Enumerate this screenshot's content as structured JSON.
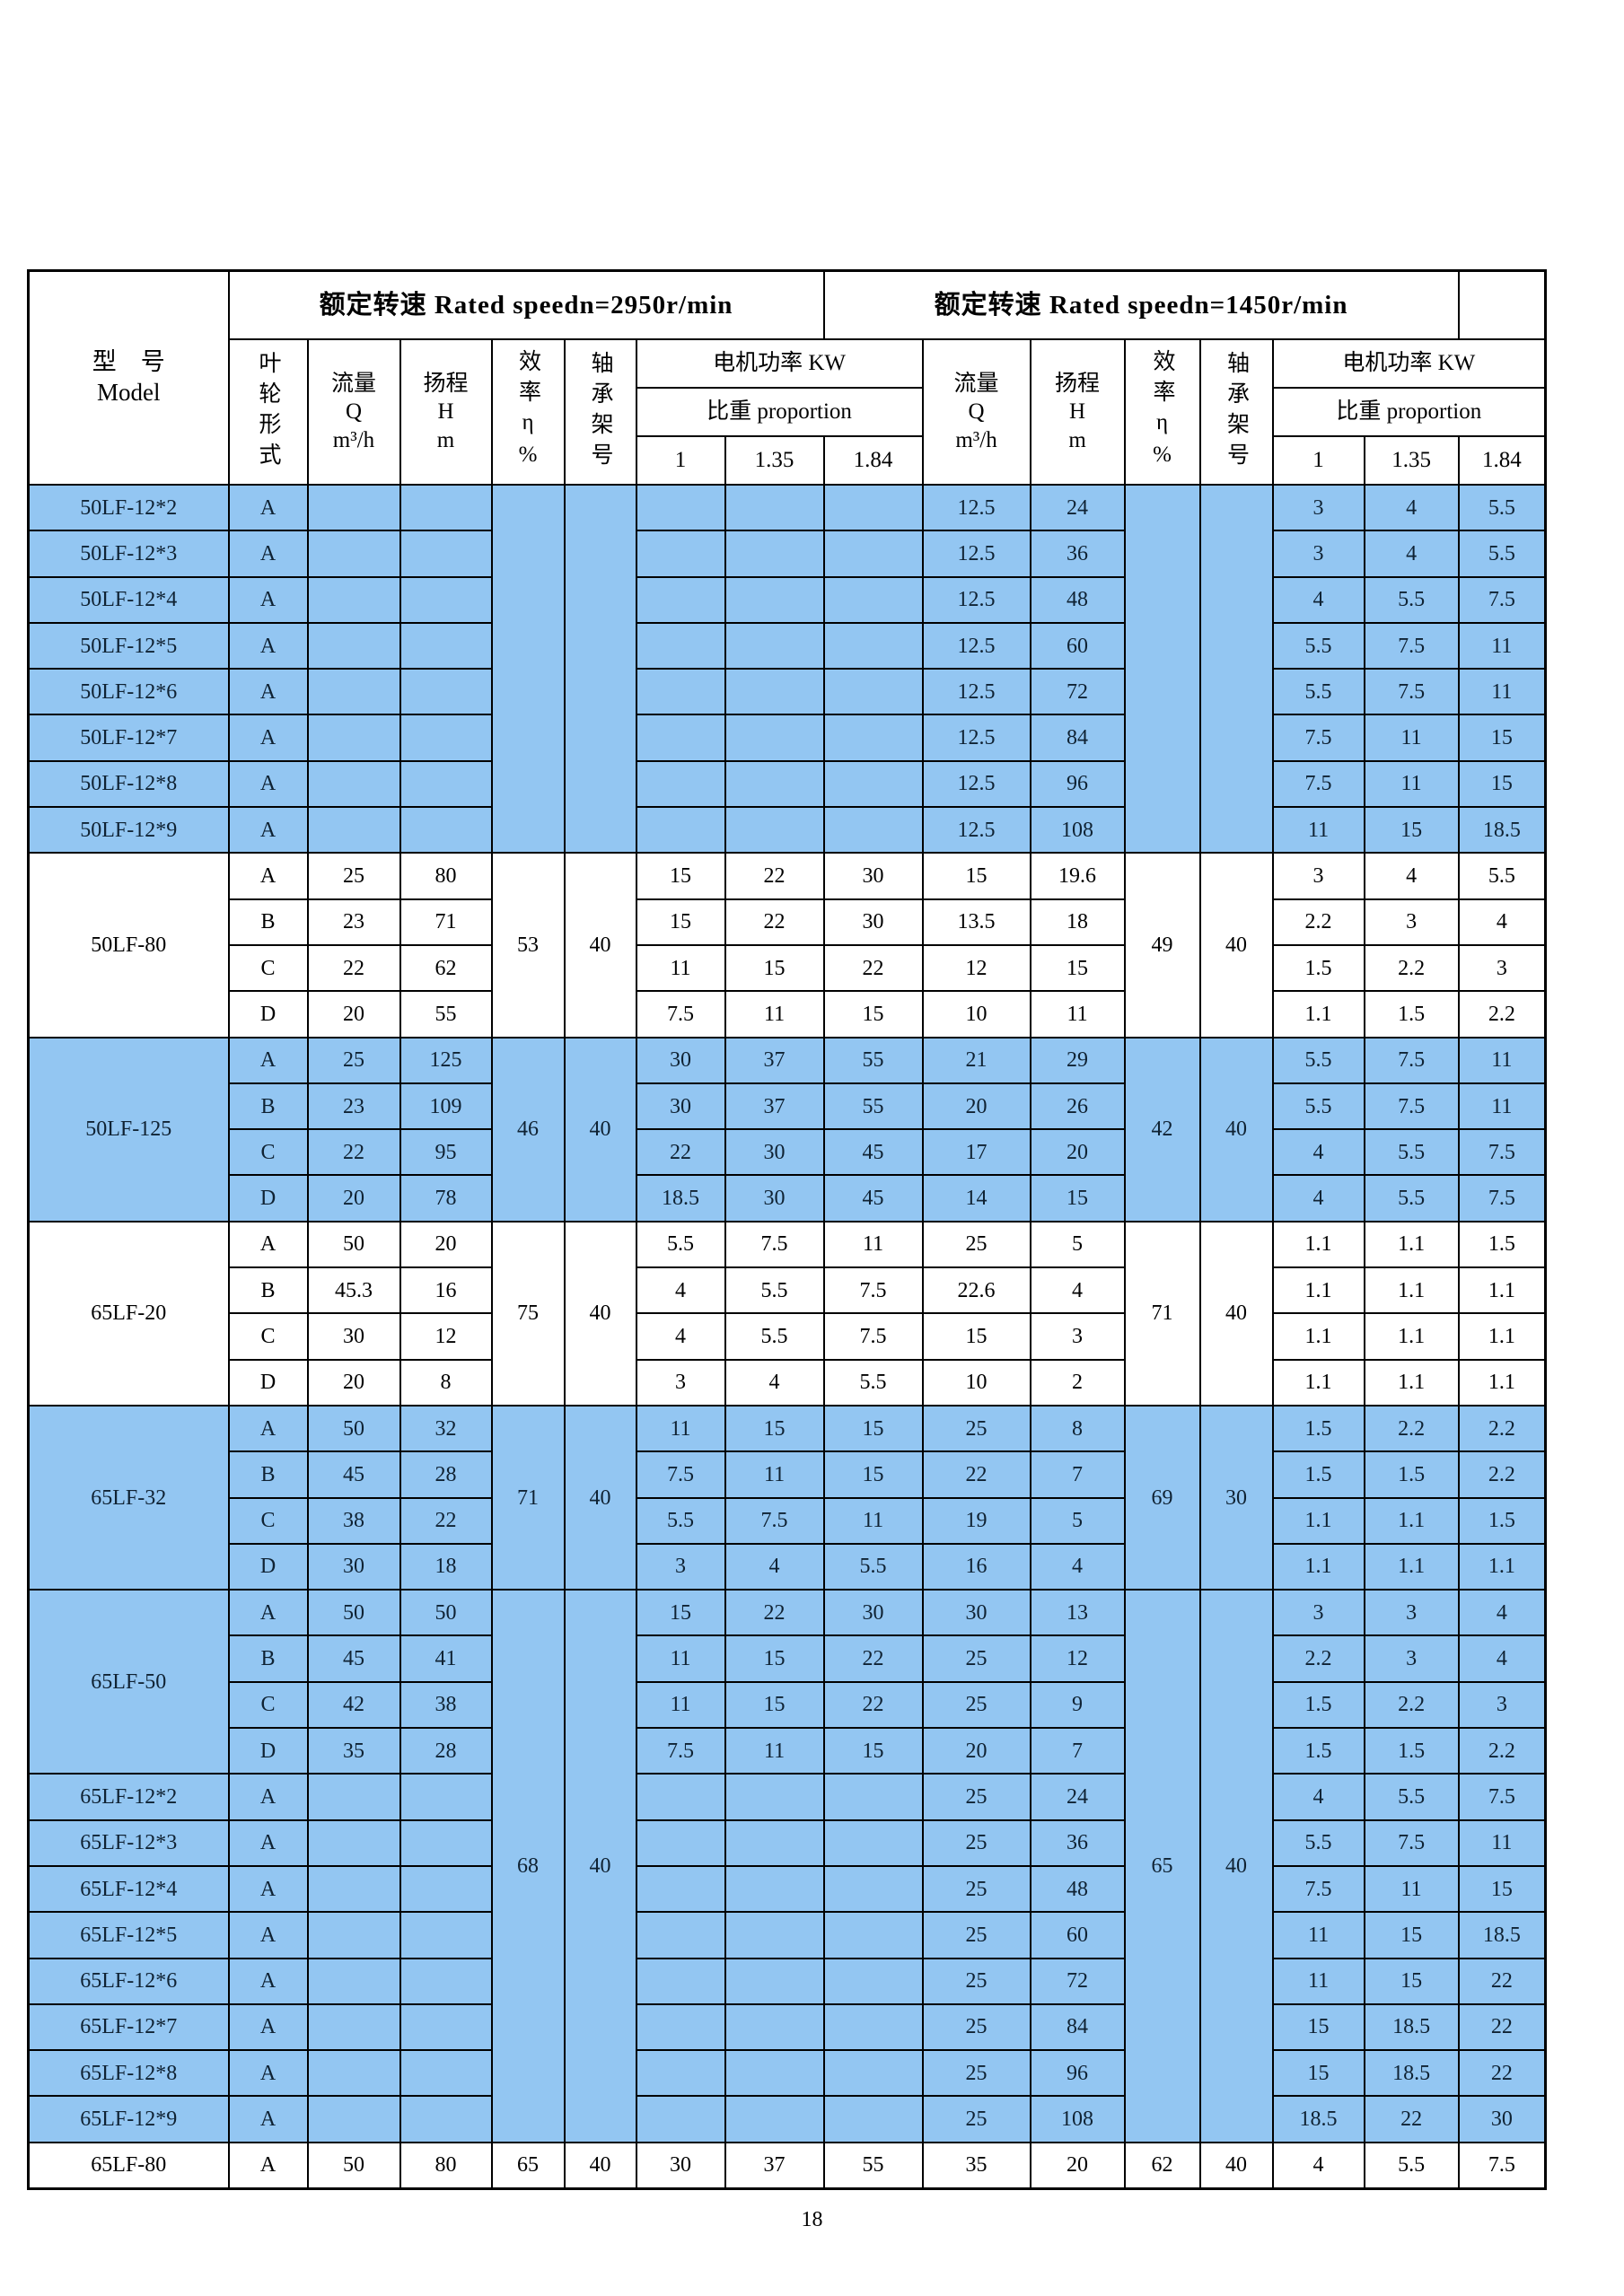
{
  "page": {
    "number": "18"
  },
  "colors": {
    "highlight": "#93c6f2",
    "border": "#000000",
    "text": "#101d2b"
  },
  "table": {
    "speed_headers": [
      "额定转速 Rated speedn=2950r/min",
      "额定转速 Rated speedn=1450r/min"
    ],
    "headers": {
      "model": "型　号\nModel",
      "impeller": "叶轮形式",
      "flow": "流量\nQ\nm³/h",
      "head": "扬程\nH\nm",
      "efficiency": "效率η%",
      "bearing": "轴承架号",
      "power": "电机功率 KW",
      "proportion": "比重 proportion",
      "ratios": [
        "1",
        "1.35",
        "1.84"
      ]
    },
    "model_blocks": [
      {
        "rows": 1,
        "label": "50LF-12*2"
      },
      {
        "rows": 1,
        "label": "50LF-12*3"
      },
      {
        "rows": 1,
        "label": "50LF-12*4"
      },
      {
        "rows": 1,
        "label": "50LF-12*5"
      },
      {
        "rows": 1,
        "label": "50LF-12*6"
      },
      {
        "rows": 1,
        "label": "50LF-12*7"
      },
      {
        "rows": 1,
        "label": "50LF-12*8"
      },
      {
        "rows": 1,
        "label": "50LF-12*9"
      },
      {
        "rows": 4,
        "label": "50LF-80"
      },
      {
        "rows": 4,
        "label": "50LF-125"
      },
      {
        "rows": 4,
        "label": "65LF-20"
      },
      {
        "rows": 4,
        "label": "65LF-32"
      },
      {
        "rows": 4,
        "label": "65LF-50"
      },
      {
        "rows": 1,
        "label": "65LF-12*2"
      },
      {
        "rows": 1,
        "label": "65LF-12*3"
      },
      {
        "rows": 1,
        "label": "65LF-12*4"
      },
      {
        "rows": 1,
        "label": "65LF-12*5"
      },
      {
        "rows": 1,
        "label": "65LF-12*6"
      },
      {
        "rows": 1,
        "label": "65LF-12*7"
      },
      {
        "rows": 1,
        "label": "65LF-12*8"
      },
      {
        "rows": 1,
        "label": "65LF-12*9"
      },
      {
        "rows": 1,
        "label": "65LF-80"
      }
    ],
    "eff_blocks": [
      {
        "rows": 8,
        "left": [
          "",
          ""
        ],
        "right": [
          "",
          ""
        ]
      },
      {
        "rows": 4,
        "left": [
          "53",
          "40"
        ],
        "right": [
          "49",
          "40"
        ]
      },
      {
        "rows": 4,
        "left": [
          "46",
          "40"
        ],
        "right": [
          "42",
          "40"
        ]
      },
      {
        "rows": 4,
        "left": [
          "75",
          "40"
        ],
        "right": [
          "71",
          "40"
        ]
      },
      {
        "rows": 4,
        "left": [
          "71",
          "40"
        ],
        "right": [
          "69",
          "30"
        ]
      },
      {
        "rows": 12,
        "left": [
          "68",
          "40"
        ],
        "right": [
          "65",
          "40"
        ]
      },
      {
        "rows": 1,
        "left": [
          "65",
          "40"
        ],
        "right": [
          "62",
          "40"
        ]
      }
    ],
    "rows": [
      {
        "imp": "A",
        "blue": true,
        "l": [
          "",
          "",
          "",
          "",
          ""
        ],
        "r": [
          "12.5",
          "24",
          "3",
          "4",
          "5.5"
        ]
      },
      {
        "imp": "A",
        "blue": true,
        "l": [
          "",
          "",
          "",
          "",
          ""
        ],
        "r": [
          "12.5",
          "36",
          "3",
          "4",
          "5.5"
        ]
      },
      {
        "imp": "A",
        "blue": true,
        "l": [
          "",
          "",
          "",
          "",
          ""
        ],
        "r": [
          "12.5",
          "48",
          "4",
          "5.5",
          "7.5"
        ]
      },
      {
        "imp": "A",
        "blue": true,
        "l": [
          "",
          "",
          "",
          "",
          ""
        ],
        "r": [
          "12.5",
          "60",
          "5.5",
          "7.5",
          "11"
        ]
      },
      {
        "imp": "A",
        "blue": true,
        "l": [
          "",
          "",
          "",
          "",
          ""
        ],
        "r": [
          "12.5",
          "72",
          "5.5",
          "7.5",
          "11"
        ]
      },
      {
        "imp": "A",
        "blue": true,
        "l": [
          "",
          "",
          "",
          "",
          ""
        ],
        "r": [
          "12.5",
          "84",
          "7.5",
          "11",
          "15"
        ]
      },
      {
        "imp": "A",
        "blue": true,
        "l": [
          "",
          "",
          "",
          "",
          ""
        ],
        "r": [
          "12.5",
          "96",
          "7.5",
          "11",
          "15"
        ]
      },
      {
        "imp": "A",
        "blue": true,
        "l": [
          "",
          "",
          "",
          "",
          ""
        ],
        "r": [
          "12.5",
          "108",
          "11",
          "15",
          "18.5"
        ]
      },
      {
        "imp": "A",
        "blue": false,
        "l": [
          "25",
          "80",
          "15",
          "22",
          "30"
        ],
        "r": [
          "15",
          "19.6",
          "3",
          "4",
          "5.5"
        ]
      },
      {
        "imp": "B",
        "blue": false,
        "l": [
          "23",
          "71",
          "15",
          "22",
          "30"
        ],
        "r": [
          "13.5",
          "18",
          "2.2",
          "3",
          "4"
        ]
      },
      {
        "imp": "C",
        "blue": false,
        "l": [
          "22",
          "62",
          "11",
          "15",
          "22"
        ],
        "r": [
          "12",
          "15",
          "1.5",
          "2.2",
          "3"
        ]
      },
      {
        "imp": "D",
        "blue": false,
        "l": [
          "20",
          "55",
          "7.5",
          "11",
          "15"
        ],
        "r": [
          "10",
          "11",
          "1.1",
          "1.5",
          "2.2"
        ]
      },
      {
        "imp": "A",
        "blue": true,
        "l": [
          "25",
          "125",
          "30",
          "37",
          "55"
        ],
        "r": [
          "21",
          "29",
          "5.5",
          "7.5",
          "11"
        ]
      },
      {
        "imp": "B",
        "blue": true,
        "l": [
          "23",
          "109",
          "30",
          "37",
          "55"
        ],
        "r": [
          "20",
          "26",
          "5.5",
          "7.5",
          "11"
        ]
      },
      {
        "imp": "C",
        "blue": true,
        "l": [
          "22",
          "95",
          "22",
          "30",
          "45"
        ],
        "r": [
          "17",
          "20",
          "4",
          "5.5",
          "7.5"
        ]
      },
      {
        "imp": "D",
        "blue": true,
        "l": [
          "20",
          "78",
          "18.5",
          "30",
          "45"
        ],
        "r": [
          "14",
          "15",
          "4",
          "5.5",
          "7.5"
        ]
      },
      {
        "imp": "A",
        "blue": false,
        "l": [
          "50",
          "20",
          "5.5",
          "7.5",
          "11"
        ],
        "r": [
          "25",
          "5",
          "1.1",
          "1.1",
          "1.5"
        ]
      },
      {
        "imp": "B",
        "blue": false,
        "l": [
          "45.3",
          "16",
          "4",
          "5.5",
          "7.5"
        ],
        "r": [
          "22.6",
          "4",
          "1.1",
          "1.1",
          "1.1"
        ]
      },
      {
        "imp": "C",
        "blue": false,
        "l": [
          "30",
          "12",
          "4",
          "5.5",
          "7.5"
        ],
        "r": [
          "15",
          "3",
          "1.1",
          "1.1",
          "1.1"
        ]
      },
      {
        "imp": "D",
        "blue": false,
        "l": [
          "20",
          "8",
          "3",
          "4",
          "5.5"
        ],
        "r": [
          "10",
          "2",
          "1.1",
          "1.1",
          "1.1"
        ]
      },
      {
        "imp": "A",
        "blue": true,
        "l": [
          "50",
          "32",
          "11",
          "15",
          "15"
        ],
        "r": [
          "25",
          "8",
          "1.5",
          "2.2",
          "2.2"
        ]
      },
      {
        "imp": "B",
        "blue": true,
        "l": [
          "45",
          "28",
          "7.5",
          "11",
          "15"
        ],
        "r": [
          "22",
          "7",
          "1.5",
          "1.5",
          "2.2"
        ]
      },
      {
        "imp": "C",
        "blue": true,
        "l": [
          "38",
          "22",
          "5.5",
          "7.5",
          "11"
        ],
        "r": [
          "19",
          "5",
          "1.1",
          "1.1",
          "1.5"
        ]
      },
      {
        "imp": "D",
        "blue": true,
        "l": [
          "30",
          "18",
          "3",
          "4",
          "5.5"
        ],
        "r": [
          "16",
          "4",
          "1.1",
          "1.1",
          "1.1"
        ]
      },
      {
        "imp": "A",
        "blue": true,
        "l": [
          "50",
          "50",
          "15",
          "22",
          "30"
        ],
        "r": [
          "30",
          "13",
          "3",
          "3",
          "4"
        ]
      },
      {
        "imp": "B",
        "blue": true,
        "l": [
          "45",
          "41",
          "11",
          "15",
          "22"
        ],
        "r": [
          "25",
          "12",
          "2.2",
          "3",
          "4"
        ]
      },
      {
        "imp": "C",
        "blue": true,
        "l": [
          "42",
          "38",
          "11",
          "15",
          "22"
        ],
        "r": [
          "25",
          "9",
          "1.5",
          "2.2",
          "3"
        ]
      },
      {
        "imp": "D",
        "blue": true,
        "l": [
          "35",
          "28",
          "7.5",
          "11",
          "15"
        ],
        "r": [
          "20",
          "7",
          "1.5",
          "1.5",
          "2.2"
        ]
      },
      {
        "imp": "A",
        "blue": true,
        "l": [
          "",
          "",
          "",
          "",
          ""
        ],
        "r": [
          "25",
          "24",
          "4",
          "5.5",
          "7.5"
        ]
      },
      {
        "imp": "A",
        "blue": true,
        "l": [
          "",
          "",
          "",
          "",
          ""
        ],
        "r": [
          "25",
          "36",
          "5.5",
          "7.5",
          "11"
        ]
      },
      {
        "imp": "A",
        "blue": true,
        "l": [
          "",
          "",
          "",
          "",
          ""
        ],
        "r": [
          "25",
          "48",
          "7.5",
          "11",
          "15"
        ]
      },
      {
        "imp": "A",
        "blue": true,
        "l": [
          "",
          "",
          "",
          "",
          ""
        ],
        "r": [
          "25",
          "60",
          "11",
          "15",
          "18.5"
        ]
      },
      {
        "imp": "A",
        "blue": true,
        "l": [
          "",
          "",
          "",
          "",
          ""
        ],
        "r": [
          "25",
          "72",
          "11",
          "15",
          "22"
        ]
      },
      {
        "imp": "A",
        "blue": true,
        "l": [
          "",
          "",
          "",
          "",
          ""
        ],
        "r": [
          "25",
          "84",
          "15",
          "18.5",
          "22"
        ]
      },
      {
        "imp": "A",
        "blue": true,
        "l": [
          "",
          "",
          "",
          "",
          ""
        ],
        "r": [
          "25",
          "96",
          "15",
          "18.5",
          "22"
        ]
      },
      {
        "imp": "A",
        "blue": true,
        "l": [
          "",
          "",
          "",
          "",
          ""
        ],
        "r": [
          "25",
          "108",
          "18.5",
          "22",
          "30"
        ]
      },
      {
        "imp": "A",
        "blue": false,
        "l": [
          "50",
          "80",
          "30",
          "37",
          "55"
        ],
        "r": [
          "35",
          "20",
          "4",
          "5.5",
          "7.5"
        ]
      }
    ]
  }
}
